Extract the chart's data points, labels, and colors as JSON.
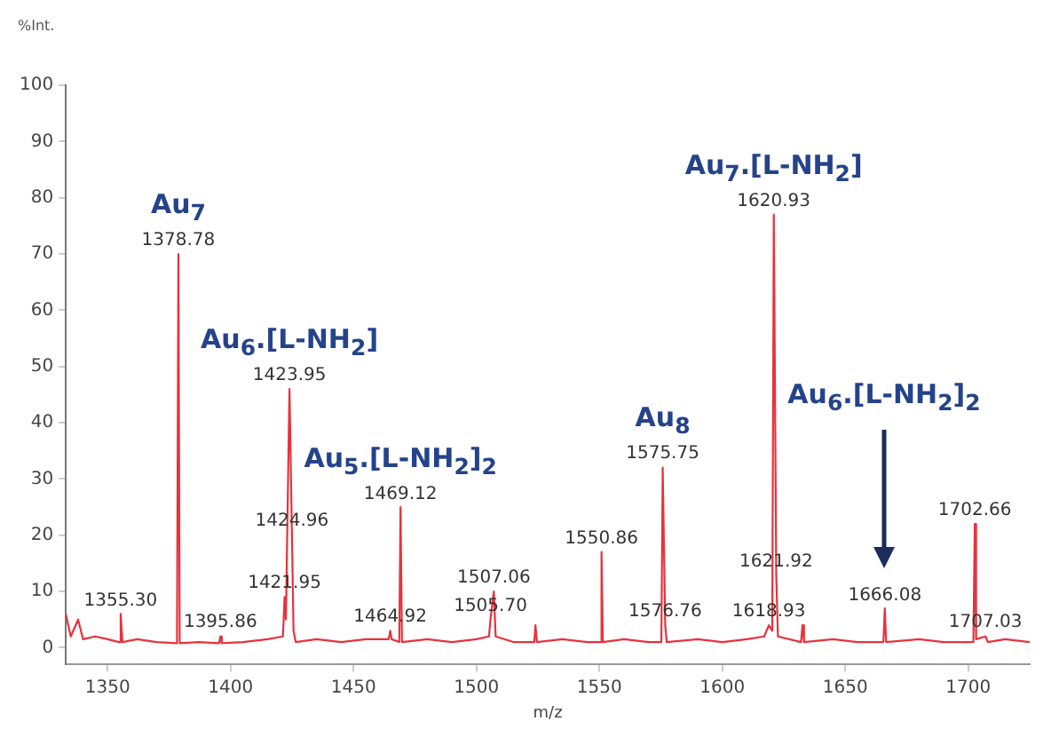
{
  "chart_data": {
    "type": "line",
    "xlabel": "m/z",
    "ylabel": "%Int.",
    "xlim": [
      1333,
      1725
    ],
    "ylim": [
      -3,
      100
    ],
    "xticks": [
      1350,
      1400,
      1450,
      1500,
      1550,
      1600,
      1650,
      1700
    ],
    "yticks": [
      0,
      10,
      20,
      30,
      40,
      50,
      60,
      70,
      80,
      90,
      100
    ],
    "grid": false,
    "legend": false,
    "marker": "none",
    "line_style": "solid",
    "series": [
      {
        "color": "#e8323c",
        "x": [
          1333,
          1335,
          1338,
          1340,
          1345,
          1350,
          1354.6,
          1355.3,
          1356,
          1362,
          1370,
          1378.2,
          1378.78,
          1379.3,
          1387,
          1395.3,
          1395.86,
          1396.4,
          1405,
          1415,
          1421.3,
          1421.95,
          1422.5,
          1423.95,
          1424.96,
          1425.6,
          1426.5,
          1435,
          1445,
          1455,
          1464.3,
          1464.92,
          1465.5,
          1468.6,
          1469.12,
          1469.7,
          1480,
          1490,
          1500,
          1505.1,
          1505.7,
          1507.06,
          1507.8,
          1515,
          1523.5,
          1524,
          1524.6,
          1535,
          1545,
          1550.3,
          1550.86,
          1551.4,
          1560,
          1570,
          1575.2,
          1575.75,
          1576.76,
          1577.4,
          1590,
          1600,
          1610,
          1617,
          1618.93,
          1620.3,
          1620.93,
          1621.92,
          1622.6,
          1632,
          1632.6,
          1633.2,
          1645,
          1655,
          1665.5,
          1666.08,
          1666.6,
          1680,
          1690,
          1702.1,
          1702.66,
          1703.2,
          1707.03,
          1708,
          1715,
          1725
        ],
        "values": [
          6,
          2,
          5,
          1.5,
          2,
          1.5,
          1,
          6,
          1,
          1.5,
          1,
          0.8,
          70,
          0.8,
          1,
          0.8,
          2,
          0.8,
          1,
          1.5,
          2,
          9,
          5,
          46,
          20,
          3,
          1,
          1.5,
          1,
          1.5,
          1.5,
          3,
          1.5,
          1,
          25,
          1,
          1.5,
          1,
          1.5,
          2,
          5,
          10,
          2,
          1,
          1,
          4,
          1,
          1.5,
          1,
          1,
          17,
          1,
          1.5,
          1,
          1,
          32,
          4,
          1,
          1.5,
          1,
          1.5,
          2,
          4,
          3,
          77,
          13,
          2,
          1,
          4,
          1,
          1.5,
          1,
          1,
          7,
          1,
          1.5,
          1,
          1,
          22,
          1.5,
          2,
          1,
          1.5,
          1
        ]
      }
    ],
    "annotations": [
      {
        "text": "1355.30",
        "x": 1355.3,
        "y": 6
      },
      {
        "text": "1378.78",
        "x": 1378.78,
        "y": 70
      },
      {
        "text": "1395.86",
        "x": 1395.86,
        "y": 2
      },
      {
        "text": "1421.95",
        "x": 1421.95,
        "y": 9
      },
      {
        "text": "1423.95",
        "x": 1423.95,
        "y": 46
      },
      {
        "text": "1424.96",
        "x": 1424.96,
        "y": 20
      },
      {
        "text": "1464.92",
        "x": 1464.92,
        "y": 3
      },
      {
        "text": "1469.12",
        "x": 1469.12,
        "y": 25
      },
      {
        "text": "1505.70",
        "x": 1505.7,
        "y": 5
      },
      {
        "text": "1507.06",
        "x": 1507.06,
        "y": 10
      },
      {
        "text": "1550.86",
        "x": 1550.86,
        "y": 17
      },
      {
        "text": "1575.75",
        "x": 1575.75,
        "y": 32
      },
      {
        "text": "1576.76",
        "x": 1576.76,
        "y": 4
      },
      {
        "text": "1618.93",
        "x": 1618.93,
        "y": 4
      },
      {
        "text": "1620.93",
        "x": 1620.93,
        "y": 77
      },
      {
        "text": "1621.92",
        "x": 1621.92,
        "y": 13
      },
      {
        "text": "1666.08",
        "x": 1666.08,
        "y": 7
      },
      {
        "text": "1702.66",
        "x": 1702.66,
        "y": 22
      },
      {
        "text": "1707.03",
        "x": 1707.03,
        "y": 2
      },
      {
        "text": "Au$_{7}$",
        "x": 1378.78,
        "y": 70
      },
      {
        "text": "Au$_{6}$.[L-NH$_{2}$]",
        "x": 1423.95,
        "y": 46
      },
      {
        "text": "Au$_{5}$.[L-NH$_{2}$]$_{2}$",
        "x": 1469.12,
        "y": 25
      },
      {
        "text": "Au$_{8}$",
        "x": 1575.75,
        "y": 32
      },
      {
        "text": "Au$_{7}$.[L-NH$_{2}$]",
        "x": 1620.93,
        "y": 77
      },
      "Au$_{6}$.[L-NH$_{2}$]$_{2}$"
    ]
  }
}
